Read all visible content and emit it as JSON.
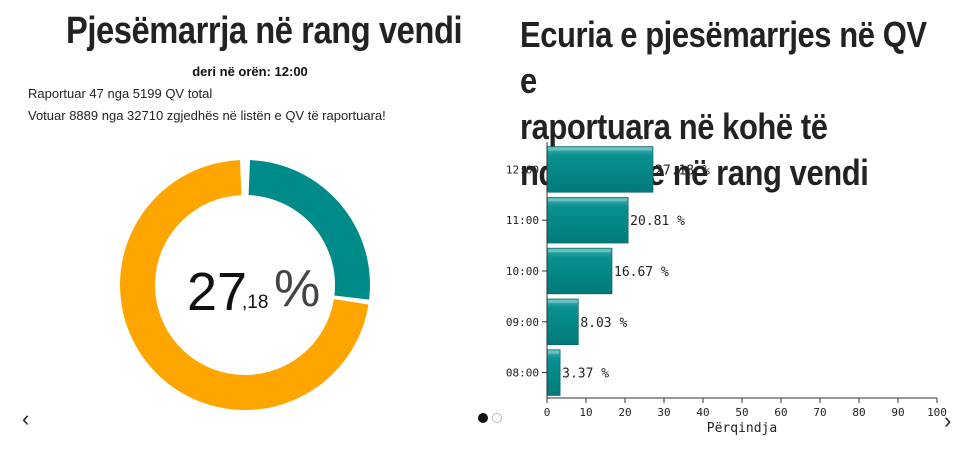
{
  "left": {
    "title": "Pjesëmarrja në rang vendi",
    "as_of": "deri në orën: 12:00",
    "reported_line": "Raportuar 47 nga 5199 QV total",
    "voted_line": "Votuar 8889 nga 32710 zgjedhës në listën e QV të raportuara!",
    "donut": {
      "value": 27.18,
      "integer_part": "27",
      "decimal_part": ",18",
      "percent_sign": "%",
      "colors": {
        "turnout": "#008b8b",
        "remaining": "#ffa500"
      }
    }
  },
  "right": {
    "title_lines": [
      "Ecuria e pjesëmarrjes në QV e",
      "raportuara në kohë të",
      "ndryshme në rang vendi"
    ]
  },
  "nav": {
    "prev_icon": "‹",
    "next_icon": "›"
  },
  "colors": {
    "bar": "#008b8b",
    "bar_dark": "#006f6f",
    "bar_light": "#3aacac"
  },
  "chart_data": {
    "type": "bar",
    "orientation": "horizontal",
    "categories": [
      "12:00",
      "11:00",
      "10:00",
      "09:00",
      "08:00"
    ],
    "values": [
      27.18,
      20.81,
      16.67,
      8.03,
      3.37
    ],
    "value_labels": [
      "27.18 %",
      "20.81 %",
      "16.67 %",
      "8.03 %",
      "3.37 %"
    ],
    "xlabel": "Përqindja",
    "xlim": [
      0,
      100
    ],
    "xticks": [
      0,
      10,
      20,
      30,
      40,
      50,
      60,
      70,
      80,
      90,
      100
    ]
  }
}
